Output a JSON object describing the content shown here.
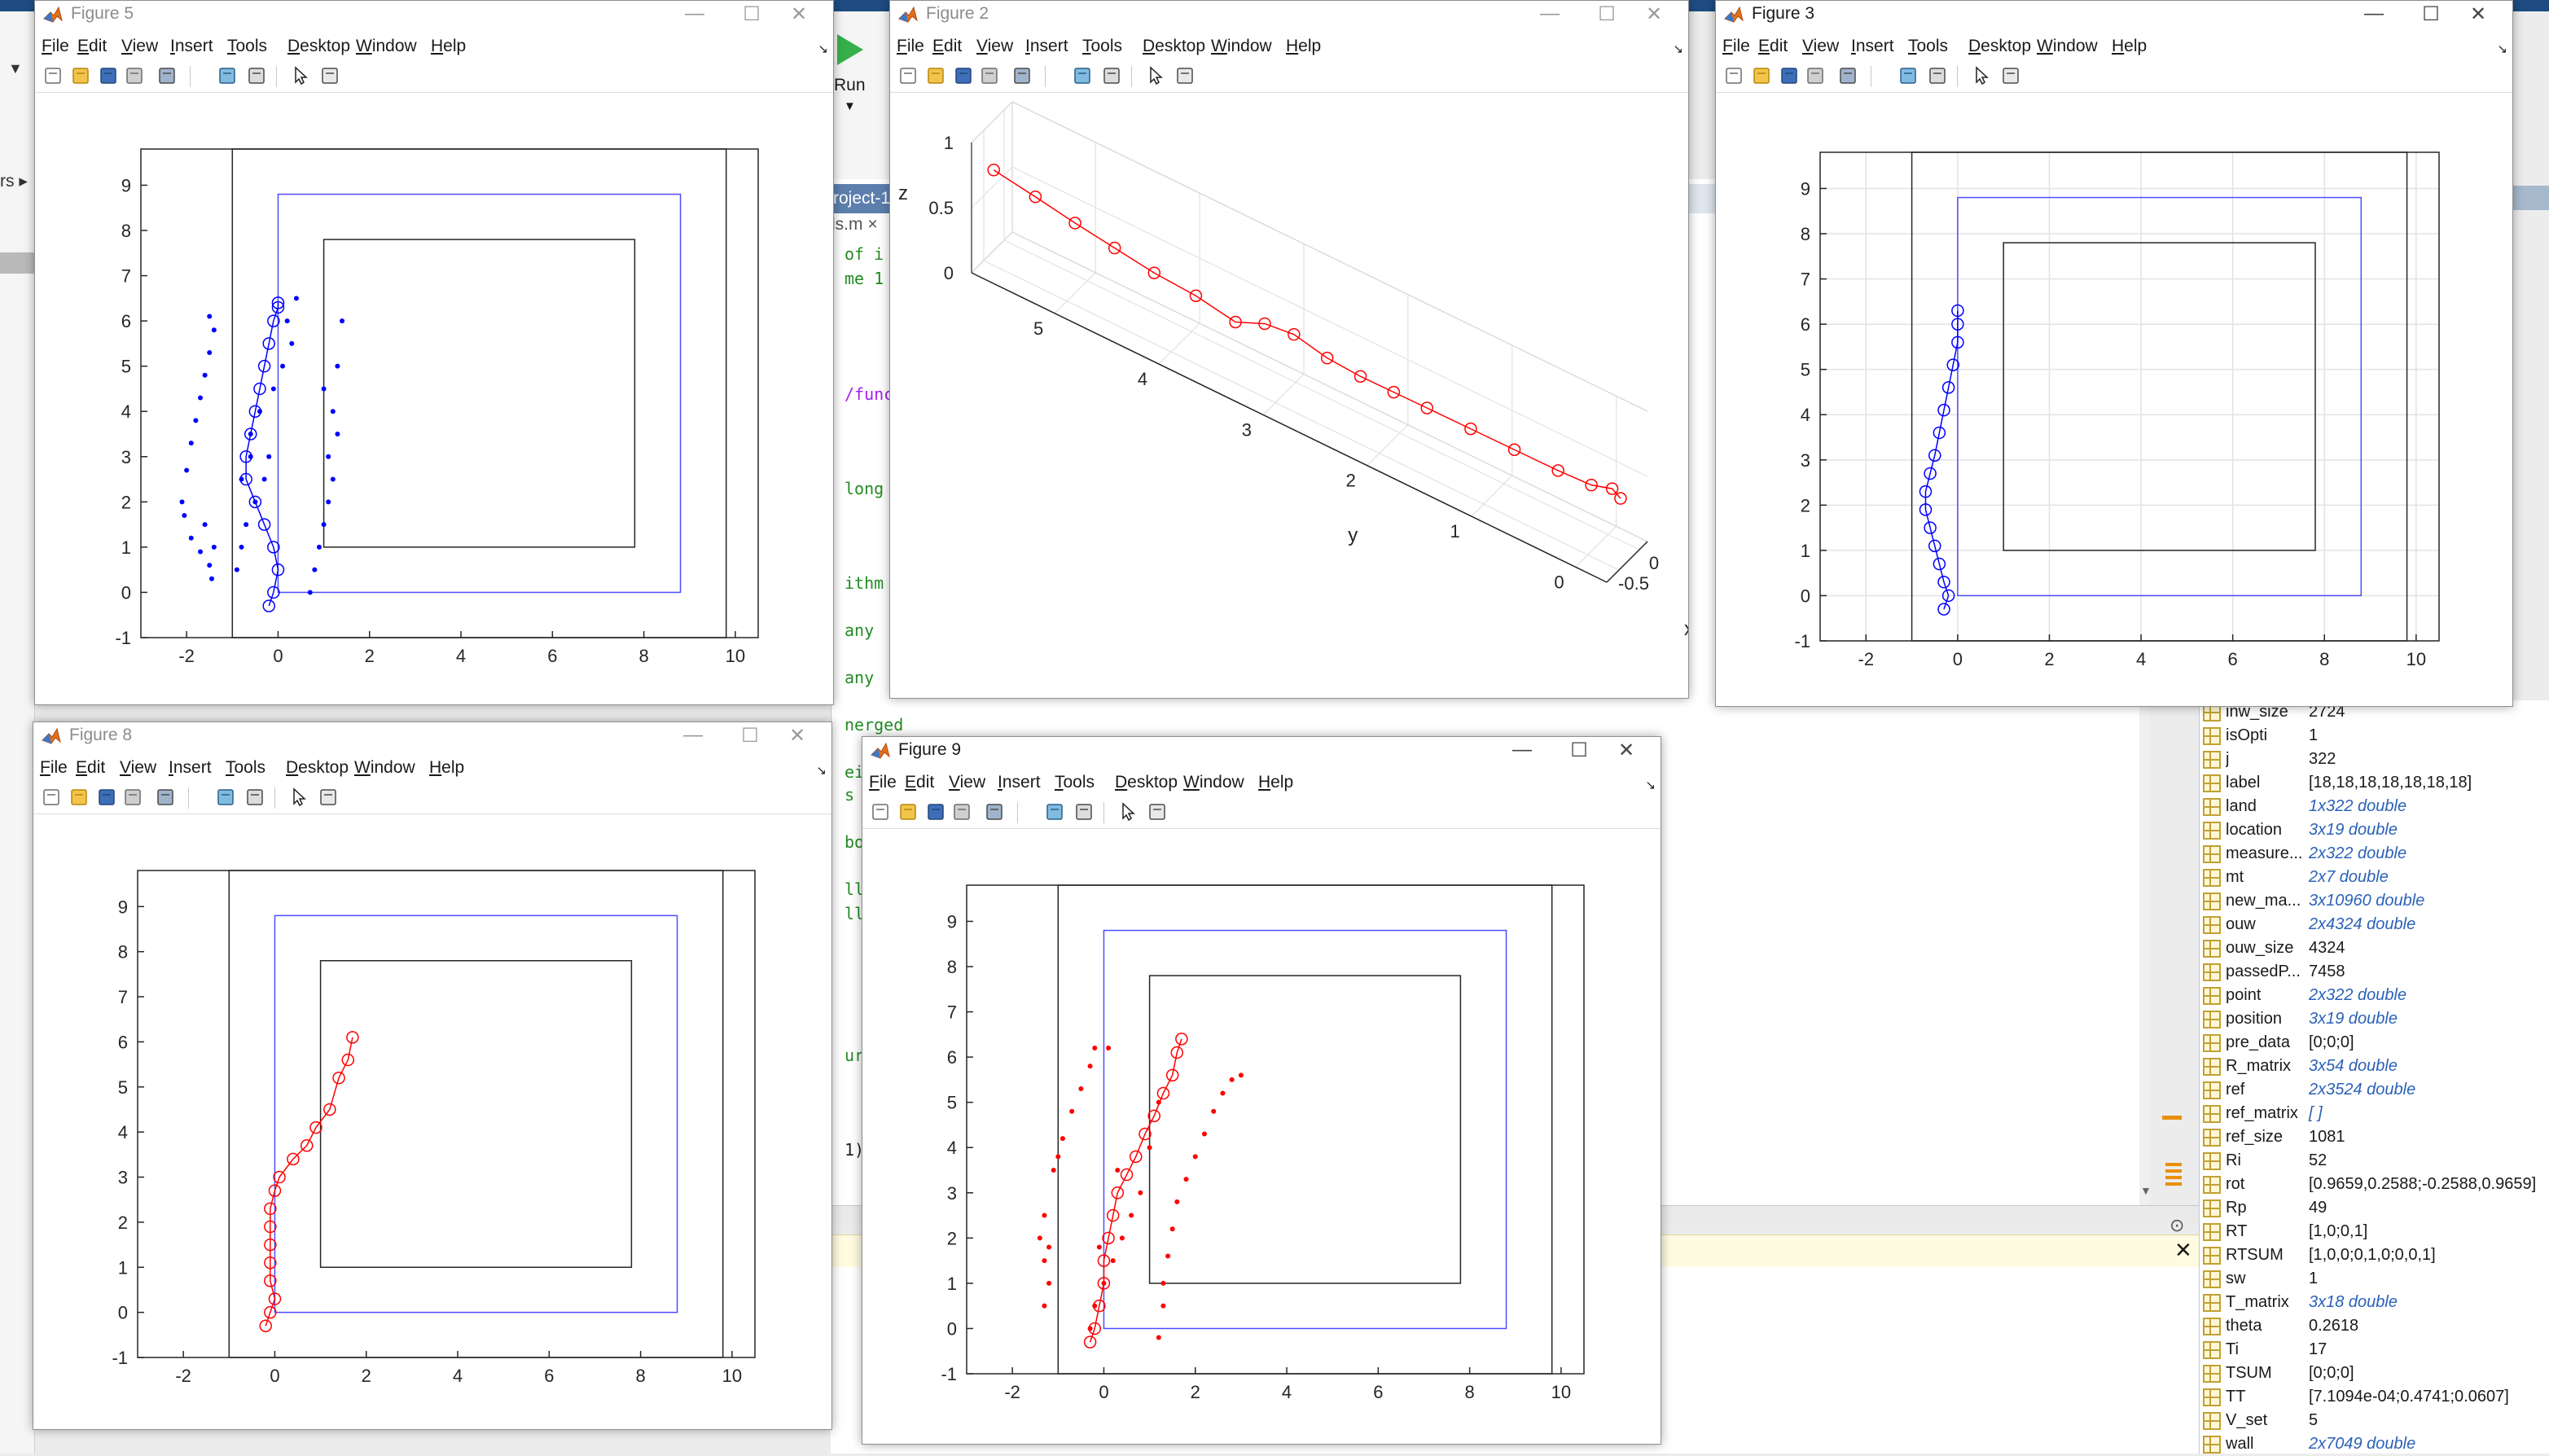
{
  "colors": {
    "blue": "#0000ff",
    "red": "#ff0000",
    "black": "#000000",
    "rect_blue": "#4d4dff"
  },
  "icons": {
    "run": "run-play-icon",
    "figure": "matlab-figure-icon"
  },
  "background": {
    "run_label": "Run",
    "breadcrumb": "rs ▸",
    "tab_label": "roject-1",
    "tab2_label": "ls.m ×",
    "editor_lines": [
      {
        "text": "of i",
        "top": 80,
        "cls": "green"
      },
      {
        "text": "me 1 ",
        "top": 110,
        "cls": "green"
      },
      {
        "text": "/func",
        "top": 252,
        "cls": "purple"
      },
      {
        "text": "long ",
        "top": 368,
        "cls": "green"
      },
      {
        "text": "ithm ",
        "top": 484,
        "cls": "green"
      },
      {
        "text": "any ",
        "top": 542,
        "cls": "green"
      },
      {
        "text": "any ",
        "top": 600,
        "cls": "green"
      },
      {
        "text": "nerged",
        "top": 658,
        "cls": "green"
      },
      {
        "text": "eig",
        "top": 716,
        "cls": "green"
      },
      {
        "text": "s of",
        "top": 744,
        "cls": "green"
      },
      {
        "text": "bors",
        "top": 802,
        "cls": "green"
      },
      {
        "text": "ll",
        "top": 860,
        "cls": "green"
      },
      {
        "text": "ll",
        "top": 890,
        "cls": "green"
      },
      {
        "text": "ure",
        "top": 1064,
        "cls": "green"
      },
      {
        "text": "1)",
        "top": 1180,
        "cls": "blk"
      }
    ]
  },
  "menus": [
    "File",
    "Edit",
    "View",
    "Insert",
    "Tools",
    "Desktop",
    "Window",
    "Help"
  ],
  "figures": [
    {
      "id": "fig5",
      "title": "Figure 5",
      "active": false
    },
    {
      "id": "fig2",
      "title": "Figure 2",
      "active": false
    },
    {
      "id": "fig3",
      "title": "Figure 3",
      "active": true
    },
    {
      "id": "fig8",
      "title": "Figure 8",
      "active": false
    },
    {
      "id": "fig9",
      "title": "Figure 9",
      "active": true
    }
  ],
  "chart_data": [
    {
      "figure": "Figure 5",
      "type": "scatter",
      "xlim": [
        -3,
        10.5
      ],
      "ylim": [
        -1,
        9.8
      ],
      "grid": false,
      "xticks": [
        -2,
        0,
        2,
        4,
        6,
        8,
        10
      ],
      "yticks": [
        -1,
        0,
        1,
        2,
        3,
        4,
        5,
        6,
        7,
        8,
        9
      ],
      "outer_rect": [
        -1,
        -1,
        9.8,
        9.8
      ],
      "blue_rect": [
        0,
        0,
        8.8,
        8.8
      ],
      "inner_rect": [
        1,
        1,
        7.8,
        7.8
      ],
      "trajectory": {
        "color": "blue",
        "x": [
          -0.2,
          -0.1,
          0,
          -0.1,
          -0.3,
          -0.5,
          -0.7,
          -0.7,
          -0.6,
          -0.5,
          -0.4,
          -0.3,
          -0.2,
          -0.1,
          0,
          0
        ],
        "y": [
          -0.3,
          0,
          0.5,
          1,
          1.5,
          2,
          2.5,
          3,
          3.5,
          4,
          4.5,
          5,
          5.5,
          6,
          6.3,
          6.4
        ]
      },
      "scatter_series": [
        {
          "color": "blue",
          "x": [
            -2.1,
            -2,
            -1.9,
            -1.8,
            -1.7,
            -1.6,
            -1.5,
            -1.4,
            -1.5,
            -1.6,
            -1.4,
            -2.05,
            -1.9,
            -1.7,
            -1.5,
            -1.45
          ],
          "y": [
            2,
            2.7,
            3.3,
            3.8,
            4.3,
            4.8,
            5.3,
            5.8,
            6.1,
            1.5,
            1,
            1.7,
            1.2,
            0.9,
            0.6,
            0.3
          ]
        },
        {
          "color": "blue",
          "x": [
            -0.9,
            -0.8,
            -0.7,
            -0.5,
            -0.3,
            -0.2,
            -0.6,
            -0.4,
            -0.1,
            0.1,
            0.3,
            0.2,
            0.4,
            -0.8,
            -0.6
          ],
          "y": [
            0.5,
            1,
            1.5,
            2,
            2.5,
            3,
            3.5,
            4,
            4.5,
            5,
            5.5,
            6,
            6.5,
            2.5,
            3
          ]
        },
        {
          "color": "blue",
          "x": [
            0.7,
            0.8,
            0.9,
            1,
            1.1,
            1.2,
            1.1,
            1.3,
            1.2,
            1,
            1.3,
            1.4
          ],
          "y": [
            0,
            0.5,
            1,
            1.5,
            2,
            2.5,
            3,
            3.5,
            4,
            4.5,
            5,
            6
          ]
        }
      ]
    },
    {
      "figure": "Figure 2",
      "type": "line",
      "axes": [
        "x",
        "y",
        "z"
      ],
      "xlim": [
        -0.8,
        0.2
      ],
      "ylim": [
        -0.3,
        5.8
      ],
      "zlim": [
        0,
        1
      ],
      "xticks": [
        -0.5,
        0
      ],
      "yticks": [
        0,
        1,
        2,
        3,
        4,
        5
      ],
      "zticks": [
        0,
        0.5,
        1
      ],
      "xlabel": "x",
      "ylabel": "y",
      "zlabel": "z",
      "series": [
        {
          "color": "red",
          "x": [
            0,
            0,
            -0.05,
            -0.1,
            -0.15,
            -0.15,
            -0.2,
            -0.25,
            -0.3,
            -0.25,
            -0.2,
            -0.15,
            -0.1,
            -0.05,
            0,
            0.05,
            0.1,
            0.1,
            0.05
          ],
          "y": [
            5.9,
            5.5,
            5.1,
            4.7,
            4.3,
            3.9,
            3.5,
            3.2,
            2.9,
            2.6,
            2.3,
            2,
            1.7,
            1.3,
            0.9,
            0.5,
            0.2,
            0,
            -0.1
          ],
          "z": [
            0.5,
            0.45,
            0.42,
            0.4,
            0.38,
            0.36,
            0.33,
            0.45,
            0.5,
            0.42,
            0.38,
            0.36,
            0.34,
            0.32,
            0.3,
            0.28,
            0.27,
            0.32,
            0.3
          ]
        }
      ]
    },
    {
      "figure": "Figure 3",
      "type": "line",
      "xlim": [
        -3,
        10.5
      ],
      "ylim": [
        -1,
        9.8
      ],
      "grid": true,
      "xticks": [
        -2,
        0,
        2,
        4,
        6,
        8,
        10
      ],
      "yticks": [
        -1,
        0,
        1,
        2,
        3,
        4,
        5,
        6,
        7,
        8,
        9
      ],
      "outer_rect": [
        -1,
        -1,
        9.8,
        9.8
      ],
      "blue_rect": [
        0,
        0,
        8.8,
        8.8
      ],
      "inner_rect": [
        1,
        1,
        7.8,
        7.8
      ],
      "trajectory": {
        "color": "blue",
        "x": [
          -0.3,
          -0.2,
          -0.3,
          -0.4,
          -0.5,
          -0.6,
          -0.7,
          -0.7,
          -0.6,
          -0.5,
          -0.4,
          -0.3,
          -0.2,
          -0.1,
          0,
          0,
          0
        ],
        "y": [
          -0.3,
          0,
          0.3,
          0.7,
          1.1,
          1.5,
          1.9,
          2.3,
          2.7,
          3.1,
          3.6,
          4.1,
          4.6,
          5.1,
          5.6,
          6,
          6.3
        ]
      }
    },
    {
      "figure": "Figure 8",
      "type": "line",
      "xlim": [
        -3,
        10.5
      ],
      "ylim": [
        -1,
        9.8
      ],
      "grid": false,
      "xticks": [
        -2,
        0,
        2,
        4,
        6,
        8,
        10
      ],
      "yticks": [
        -1,
        0,
        1,
        2,
        3,
        4,
        5,
        6,
        7,
        8,
        9
      ],
      "outer_rect": [
        -1,
        -1,
        9.8,
        9.8
      ],
      "blue_rect": [
        0,
        0,
        8.8,
        8.8
      ],
      "inner_rect": [
        1,
        1,
        7.8,
        7.8
      ],
      "trajectory": {
        "color": "red",
        "x": [
          -0.2,
          -0.1,
          0,
          -0.1,
          -0.1,
          -0.1,
          -0.1,
          -0.1,
          0,
          0.1,
          0.4,
          0.7,
          0.9,
          1.2,
          1.4,
          1.6,
          1.7
        ],
        "y": [
          -0.3,
          0,
          0.3,
          0.7,
          1.1,
          1.5,
          1.9,
          2.3,
          2.7,
          3,
          3.4,
          3.7,
          4.1,
          4.5,
          5.2,
          5.6,
          6.1
        ]
      }
    },
    {
      "figure": "Figure 9",
      "type": "scatter",
      "xlim": [
        -3,
        10.5
      ],
      "ylim": [
        -1,
        9.8
      ],
      "grid": false,
      "xticks": [
        -2,
        0,
        2,
        4,
        6,
        8,
        10
      ],
      "yticks": [
        -1,
        0,
        1,
        2,
        3,
        4,
        5,
        6,
        7,
        8,
        9
      ],
      "outer_rect": [
        -1,
        -1,
        9.8,
        9.8
      ],
      "blue_rect": [
        0,
        0,
        8.8,
        8.8
      ],
      "inner_rect": [
        1,
        1,
        7.8,
        7.8
      ],
      "trajectory": {
        "color": "red",
        "x": [
          -0.3,
          -0.2,
          -0.1,
          0,
          0,
          0.1,
          0.2,
          0.3,
          0.5,
          0.7,
          0.9,
          1.1,
          1.3,
          1.5,
          1.6,
          1.7
        ],
        "y": [
          -0.3,
          0,
          0.5,
          1,
          1.5,
          2,
          2.5,
          3,
          3.4,
          3.8,
          4.3,
          4.7,
          5.2,
          5.6,
          6.1,
          6.4
        ]
      },
      "scatter_series": [
        {
          "color": "red",
          "x": [
            -1.3,
            -1.2,
            -1.3,
            -1.4,
            -1.3,
            -1.1,
            -0.9,
            -0.7,
            -0.5,
            -0.3,
            -0.2,
            -1.2,
            -1
          ],
          "y": [
            0.5,
            1,
            1.5,
            2,
            2.5,
            3.5,
            4.2,
            4.8,
            5.3,
            5.8,
            6.2,
            1.8,
            3.8
          ]
        },
        {
          "color": "red",
          "x": [
            -0.3,
            -0.2,
            0,
            0.2,
            0.4,
            0.6,
            0.8,
            1,
            1.2,
            0.1,
            -0.1,
            0.3
          ],
          "y": [
            0,
            0.5,
            1,
            1.5,
            2,
            2.5,
            3,
            4,
            5,
            6.2,
            1.8,
            3.5
          ]
        },
        {
          "color": "red",
          "x": [
            1.2,
            1.3,
            1.3,
            1.4,
            1.5,
            1.6,
            1.8,
            2,
            2.2,
            2.4,
            2.6,
            2.8,
            3
          ],
          "y": [
            -0.2,
            0.5,
            1,
            1.6,
            2.2,
            2.8,
            3.3,
            3.8,
            4.3,
            4.8,
            5.2,
            5.5,
            5.6
          ]
        }
      ]
    }
  ],
  "workspace": [
    {
      "name": "inw_size",
      "value": "2724",
      "link": false
    },
    {
      "name": "isOpti",
      "value": "1",
      "link": false
    },
    {
      "name": "j",
      "value": "322",
      "link": false
    },
    {
      "name": "label",
      "value": "[18,18,18,18,18,18,18]",
      "link": false
    },
    {
      "name": "land",
      "value": "1x322 double",
      "link": true
    },
    {
      "name": "location",
      "value": "3x19 double",
      "link": true
    },
    {
      "name": "measure...",
      "value": "2x322 double",
      "link": true
    },
    {
      "name": "mt",
      "value": "2x7 double",
      "link": true
    },
    {
      "name": "new_ma...",
      "value": "3x10960 double",
      "link": true
    },
    {
      "name": "ouw",
      "value": "2x4324 double",
      "link": true
    },
    {
      "name": "ouw_size",
      "value": "4324",
      "link": false
    },
    {
      "name": "passedP...",
      "value": "7458",
      "link": false
    },
    {
      "name": "point",
      "value": "2x322 double",
      "link": true
    },
    {
      "name": "position",
      "value": "3x19 double",
      "link": true
    },
    {
      "name": "pre_data",
      "value": "[0;0;0]",
      "link": false
    },
    {
      "name": "R_matrix",
      "value": "3x54 double",
      "link": true
    },
    {
      "name": "ref",
      "value": "2x3524 double",
      "link": true
    },
    {
      "name": "ref_matrix",
      "value": "[ ]",
      "link": true
    },
    {
      "name": "ref_size",
      "value": "1081",
      "link": false
    },
    {
      "name": "Ri",
      "value": "52",
      "link": false
    },
    {
      "name": "rot",
      "value": "[0.9659,0.2588;-0.2588,0.9659]",
      "link": false
    },
    {
      "name": "Rp",
      "value": "49",
      "link": false
    },
    {
      "name": "RT",
      "value": "[1,0;0,1]",
      "link": false
    },
    {
      "name": "RTSUM",
      "value": "[1,0,0;0,1,0;0,0,1]",
      "link": false
    },
    {
      "name": "sw",
      "value": "1",
      "link": false
    },
    {
      "name": "T_matrix",
      "value": "3x18 double",
      "link": true
    },
    {
      "name": "theta",
      "value": "0.2618",
      "link": false
    },
    {
      "name": "Ti",
      "value": "17",
      "link": false
    },
    {
      "name": "TSUM",
      "value": "[0;0;0]",
      "link": false
    },
    {
      "name": "TT",
      "value": "[7.1094e-04;0.4741;0.0607]",
      "link": false
    },
    {
      "name": "V_set",
      "value": "5",
      "link": false
    },
    {
      "name": "wall",
      "value": "2x7049 double",
      "link": true
    }
  ]
}
